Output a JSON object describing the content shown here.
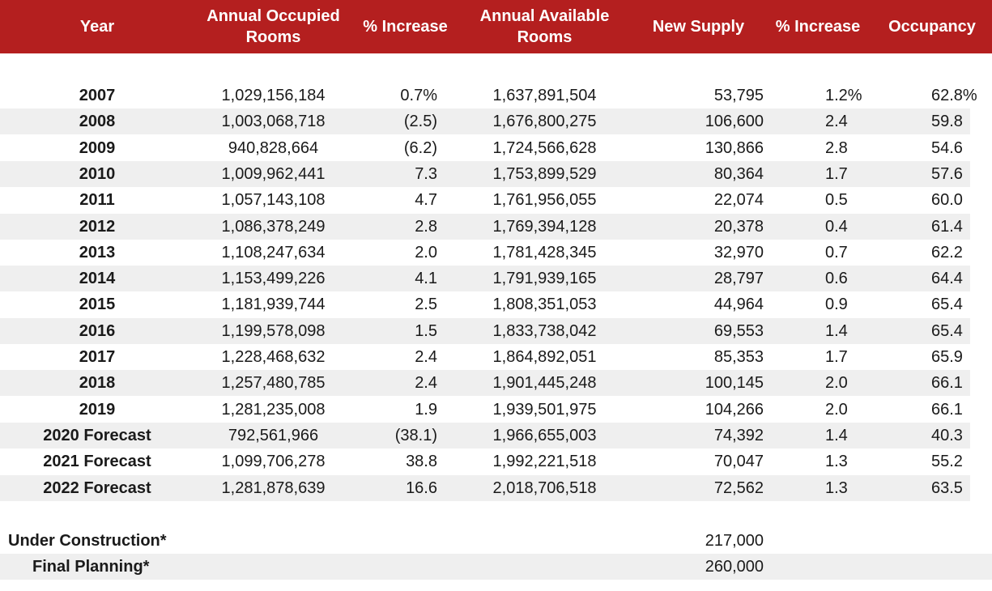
{
  "header": {
    "year": "Year",
    "occupied": "Annual Occupied Rooms",
    "increase1": "% Increase",
    "available": "Annual Available Rooms",
    "supply": "New Supply",
    "increase2": "% Increase",
    "occupancy": "Occupancy"
  },
  "rows": [
    {
      "year": "2007",
      "occupied": "1,029,156,184",
      "inc1": "0.7%",
      "available": "1,637,891,504",
      "supply": "53,795",
      "inc2": "1.2%",
      "occ": "62.8%"
    },
    {
      "year": "2008",
      "occupied": "1,003,068,718",
      "inc1": "(2.5)",
      "available": "1,676,800,275",
      "supply": "106,600",
      "inc2": "2.4",
      "occ": "59.8"
    },
    {
      "year": "2009",
      "occupied": "940,828,664",
      "inc1": "(6.2)",
      "available": "1,724,566,628",
      "supply": "130,866",
      "inc2": "2.8",
      "occ": "54.6"
    },
    {
      "year": "2010",
      "occupied": "1,009,962,441",
      "inc1": "7.3",
      "available": "1,753,899,529",
      "supply": "80,364",
      "inc2": "1.7",
      "occ": "57.6"
    },
    {
      "year": "2011",
      "occupied": "1,057,143,108",
      "inc1": "4.7",
      "available": "1,761,956,055",
      "supply": "22,074",
      "inc2": "0.5",
      "occ": "60.0"
    },
    {
      "year": "2012",
      "occupied": "1,086,378,249",
      "inc1": "2.8",
      "available": "1,769,394,128",
      "supply": "20,378",
      "inc2": "0.4",
      "occ": "61.4"
    },
    {
      "year": "2013",
      "occupied": "1,108,247,634",
      "inc1": "2.0",
      "available": "1,781,428,345",
      "supply": "32,970",
      "inc2": "0.7",
      "occ": "62.2"
    },
    {
      "year": "2014",
      "occupied": "1,153,499,226",
      "inc1": "4.1",
      "available": "1,791,939,165",
      "supply": "28,797",
      "inc2": "0.6",
      "occ": "64.4"
    },
    {
      "year": "2015",
      "occupied": "1,181,939,744",
      "inc1": "2.5",
      "available": "1,808,351,053",
      "supply": "44,964",
      "inc2": "0.9",
      "occ": "65.4"
    },
    {
      "year": "2016",
      "occupied": "1,199,578,098",
      "inc1": "1.5",
      "available": "1,833,738,042",
      "supply": "69,553",
      "inc2": "1.4",
      "occ": "65.4"
    },
    {
      "year": "2017",
      "occupied": "1,228,468,632",
      "inc1": "2.4",
      "available": "1,864,892,051",
      "supply": "85,353",
      "inc2": "1.7",
      "occ": "65.9"
    },
    {
      "year": "2018",
      "occupied": "1,257,480,785",
      "inc1": "2.4",
      "available": "1,901,445,248",
      "supply": "100,145",
      "inc2": "2.0",
      "occ": "66.1"
    },
    {
      "year": "2019",
      "occupied": "1,281,235,008",
      "inc1": "1.9",
      "available": "1,939,501,975",
      "supply": "104,266",
      "inc2": "2.0",
      "occ": "66.1"
    },
    {
      "year": "2020 Forecast",
      "occupied": "792,561,966",
      "inc1": "(38.1)",
      "available": "1,966,655,003",
      "supply": "74,392",
      "inc2": "1.4",
      "occ": "40.3"
    },
    {
      "year": "2021 Forecast",
      "occupied": "1,099,706,278",
      "inc1": "38.8",
      "available": "1,992,221,518",
      "supply": "70,047",
      "inc2": "1.3",
      "occ": "55.2"
    },
    {
      "year": "2022 Forecast",
      "occupied": "1,281,878,639",
      "inc1": "16.6",
      "available": "2,018,706,518",
      "supply": "72,562",
      "inc2": "1.3",
      "occ": "63.5"
    }
  ],
  "footer": [
    {
      "label": "Under Construction*",
      "supply": "217,000"
    },
    {
      "label": "Final Planning*",
      "supply": "260,000"
    }
  ]
}
